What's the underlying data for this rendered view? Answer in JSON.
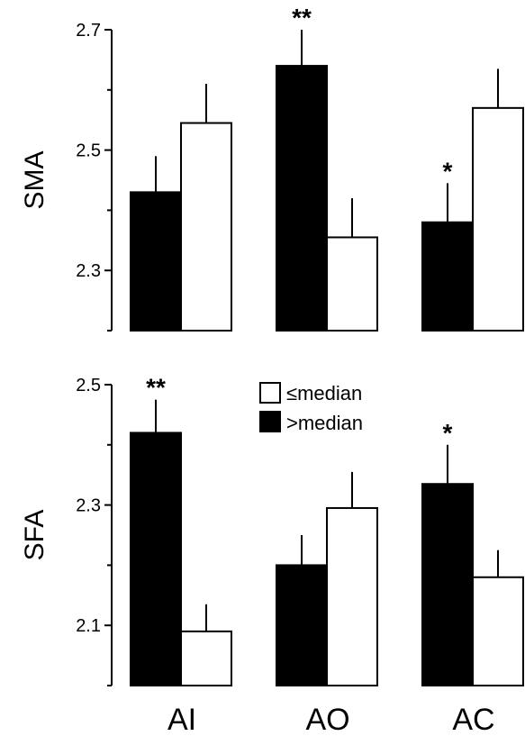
{
  "chart_data": [
    {
      "type": "bar",
      "ylabel": "SMA",
      "ylim": [
        2.2,
        2.7
      ],
      "yticks": [
        "2.7",
        "2.5",
        "2.3"
      ],
      "tick_values": [
        2.7,
        2.5,
        2.3
      ],
      "minor_ticks": [
        2.6,
        2.4,
        2.2
      ],
      "categories": [
        "AI",
        "AO",
        "AC"
      ],
      "series": [
        {
          "name": ">median",
          "color": "#000000",
          "values": [
            2.43,
            2.64,
            2.38
          ],
          "errors": [
            0.06,
            0.06,
            0.065
          ]
        },
        {
          "name": "≤median",
          "color": "#ffffff",
          "values": [
            2.545,
            2.355,
            2.57
          ],
          "errors": [
            0.065,
            0.065,
            0.065
          ]
        }
      ],
      "annotations": [
        {
          "category": "AO",
          "series": ">median",
          "text": "**"
        },
        {
          "category": "AC",
          "series": ">median",
          "text": "*"
        }
      ]
    },
    {
      "type": "bar",
      "ylabel": "SFA",
      "ylim": [
        2.0,
        2.5
      ],
      "yticks": [
        "2.5",
        "2.3",
        "2.1"
      ],
      "tick_values": [
        2.5,
        2.3,
        2.1
      ],
      "minor_ticks": [
        2.4,
        2.2,
        2.0
      ],
      "categories": [
        "AI",
        "AO",
        "AC"
      ],
      "series": [
        {
          "name": ">median",
          "color": "#000000",
          "values": [
            2.42,
            2.2,
            2.335
          ],
          "errors": [
            0.055,
            0.05,
            0.065
          ]
        },
        {
          "name": "≤median",
          "color": "#ffffff",
          "values": [
            2.09,
            2.295,
            2.18
          ],
          "errors": [
            0.045,
            0.06,
            0.045
          ]
        }
      ],
      "annotations": [
        {
          "category": "AI",
          "series": ">median",
          "text": "**"
        },
        {
          "category": "AC",
          "series": ">median",
          "text": "*"
        }
      ]
    }
  ],
  "legend": {
    "placement": "top-center of lower panel",
    "items": [
      {
        "label": "≤median",
        "color": "#ffffff"
      },
      {
        "label": ">median",
        "color": "#000000"
      }
    ]
  },
  "categories_axis": [
    "AI",
    "AO",
    "AC"
  ]
}
